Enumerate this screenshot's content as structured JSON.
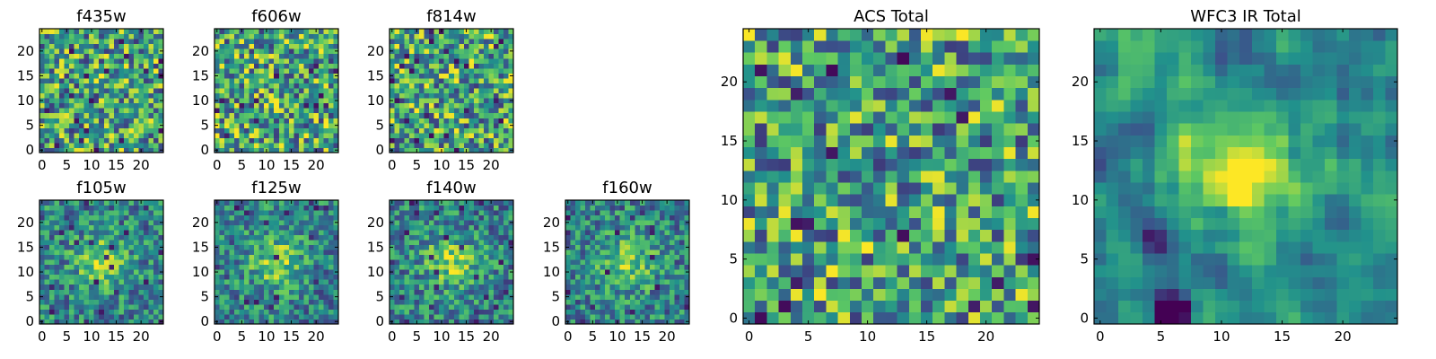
{
  "figure": {
    "colormap": "viridis",
    "colormap_stops": [
      "#440154",
      "#3b528b",
      "#21918c",
      "#5ec962",
      "#fde725"
    ]
  },
  "chart_data": [
    {
      "type": "heatmap",
      "title": "f435w",
      "grid": [
        25,
        25
      ],
      "xlim": [
        -0.5,
        24.5
      ],
      "ylim": [
        -0.5,
        24.5
      ],
      "xticks": [
        "0",
        "5",
        "10",
        "15",
        "20"
      ],
      "yticks": [
        "0",
        "5",
        "10",
        "15",
        "20"
      ],
      "pattern": "noise",
      "seed": 11
    },
    {
      "type": "heatmap",
      "title": "f606w",
      "grid": [
        25,
        25
      ],
      "xlim": [
        -0.5,
        24.5
      ],
      "ylim": [
        -0.5,
        24.5
      ],
      "xticks": [
        "0",
        "5",
        "10",
        "15",
        "20"
      ],
      "yticks": [
        "0",
        "5",
        "10",
        "15",
        "20"
      ],
      "pattern": "noise",
      "seed": 23
    },
    {
      "type": "heatmap",
      "title": "f814w",
      "grid": [
        25,
        25
      ],
      "xlim": [
        -0.5,
        24.5
      ],
      "ylim": [
        -0.5,
        24.5
      ],
      "xticks": [
        "0",
        "5",
        "10",
        "15",
        "20"
      ],
      "yticks": [
        "0",
        "5",
        "10",
        "15",
        "20"
      ],
      "pattern": "noise",
      "seed": 37
    },
    {
      "type": "heatmap",
      "title": "f105w",
      "grid": [
        25,
        25
      ],
      "xlim": [
        -0.5,
        24.5
      ],
      "ylim": [
        -0.5,
        24.5
      ],
      "xticks": [
        "0",
        "5",
        "10",
        "15",
        "20"
      ],
      "yticks": [
        "0",
        "5",
        "10",
        "15",
        "20"
      ],
      "pattern": "source",
      "seed": 41
    },
    {
      "type": "heatmap",
      "title": "f125w",
      "grid": [
        25,
        25
      ],
      "xlim": [
        -0.5,
        24.5
      ],
      "ylim": [
        -0.5,
        24.5
      ],
      "xticks": [
        "0",
        "5",
        "10",
        "15",
        "20"
      ],
      "yticks": [
        "0",
        "5",
        "10",
        "15",
        "20"
      ],
      "pattern": "source",
      "seed": 53
    },
    {
      "type": "heatmap",
      "title": "f140w",
      "grid": [
        25,
        25
      ],
      "xlim": [
        -0.5,
        24.5
      ],
      "ylim": [
        -0.5,
        24.5
      ],
      "xticks": [
        "0",
        "5",
        "10",
        "15",
        "20"
      ],
      "yticks": [
        "0",
        "5",
        "10",
        "15",
        "20"
      ],
      "pattern": "source",
      "seed": 67
    },
    {
      "type": "heatmap",
      "title": "f160w",
      "grid": [
        25,
        25
      ],
      "xlim": [
        -0.5,
        24.5
      ],
      "ylim": [
        -0.5,
        24.5
      ],
      "xticks": [
        "0",
        "5",
        "10",
        "15",
        "20"
      ],
      "yticks": [
        "0",
        "5",
        "10",
        "15",
        "20"
      ],
      "pattern": "source",
      "seed": 79
    },
    {
      "type": "heatmap",
      "title": "ACS Total",
      "grid": [
        25,
        25
      ],
      "xlim": [
        -0.5,
        24.5
      ],
      "ylim": [
        -0.5,
        24.5
      ],
      "xticks": [
        "0",
        "5",
        "10",
        "15",
        "20"
      ],
      "yticks": [
        "0",
        "5",
        "10",
        "15",
        "20"
      ],
      "pattern": "noise",
      "seed": 97
    },
    {
      "type": "heatmap",
      "title": "WFC3 IR Total",
      "grid": [
        25,
        25
      ],
      "xlim": [
        -0.5,
        24.5
      ],
      "ylim": [
        -0.5,
        24.5
      ],
      "xticks": [
        "0",
        "5",
        "10",
        "15",
        "20"
      ],
      "yticks": [
        "0",
        "5",
        "10",
        "15",
        "20"
      ],
      "pattern": "smooth-source",
      "seed": 101
    }
  ]
}
